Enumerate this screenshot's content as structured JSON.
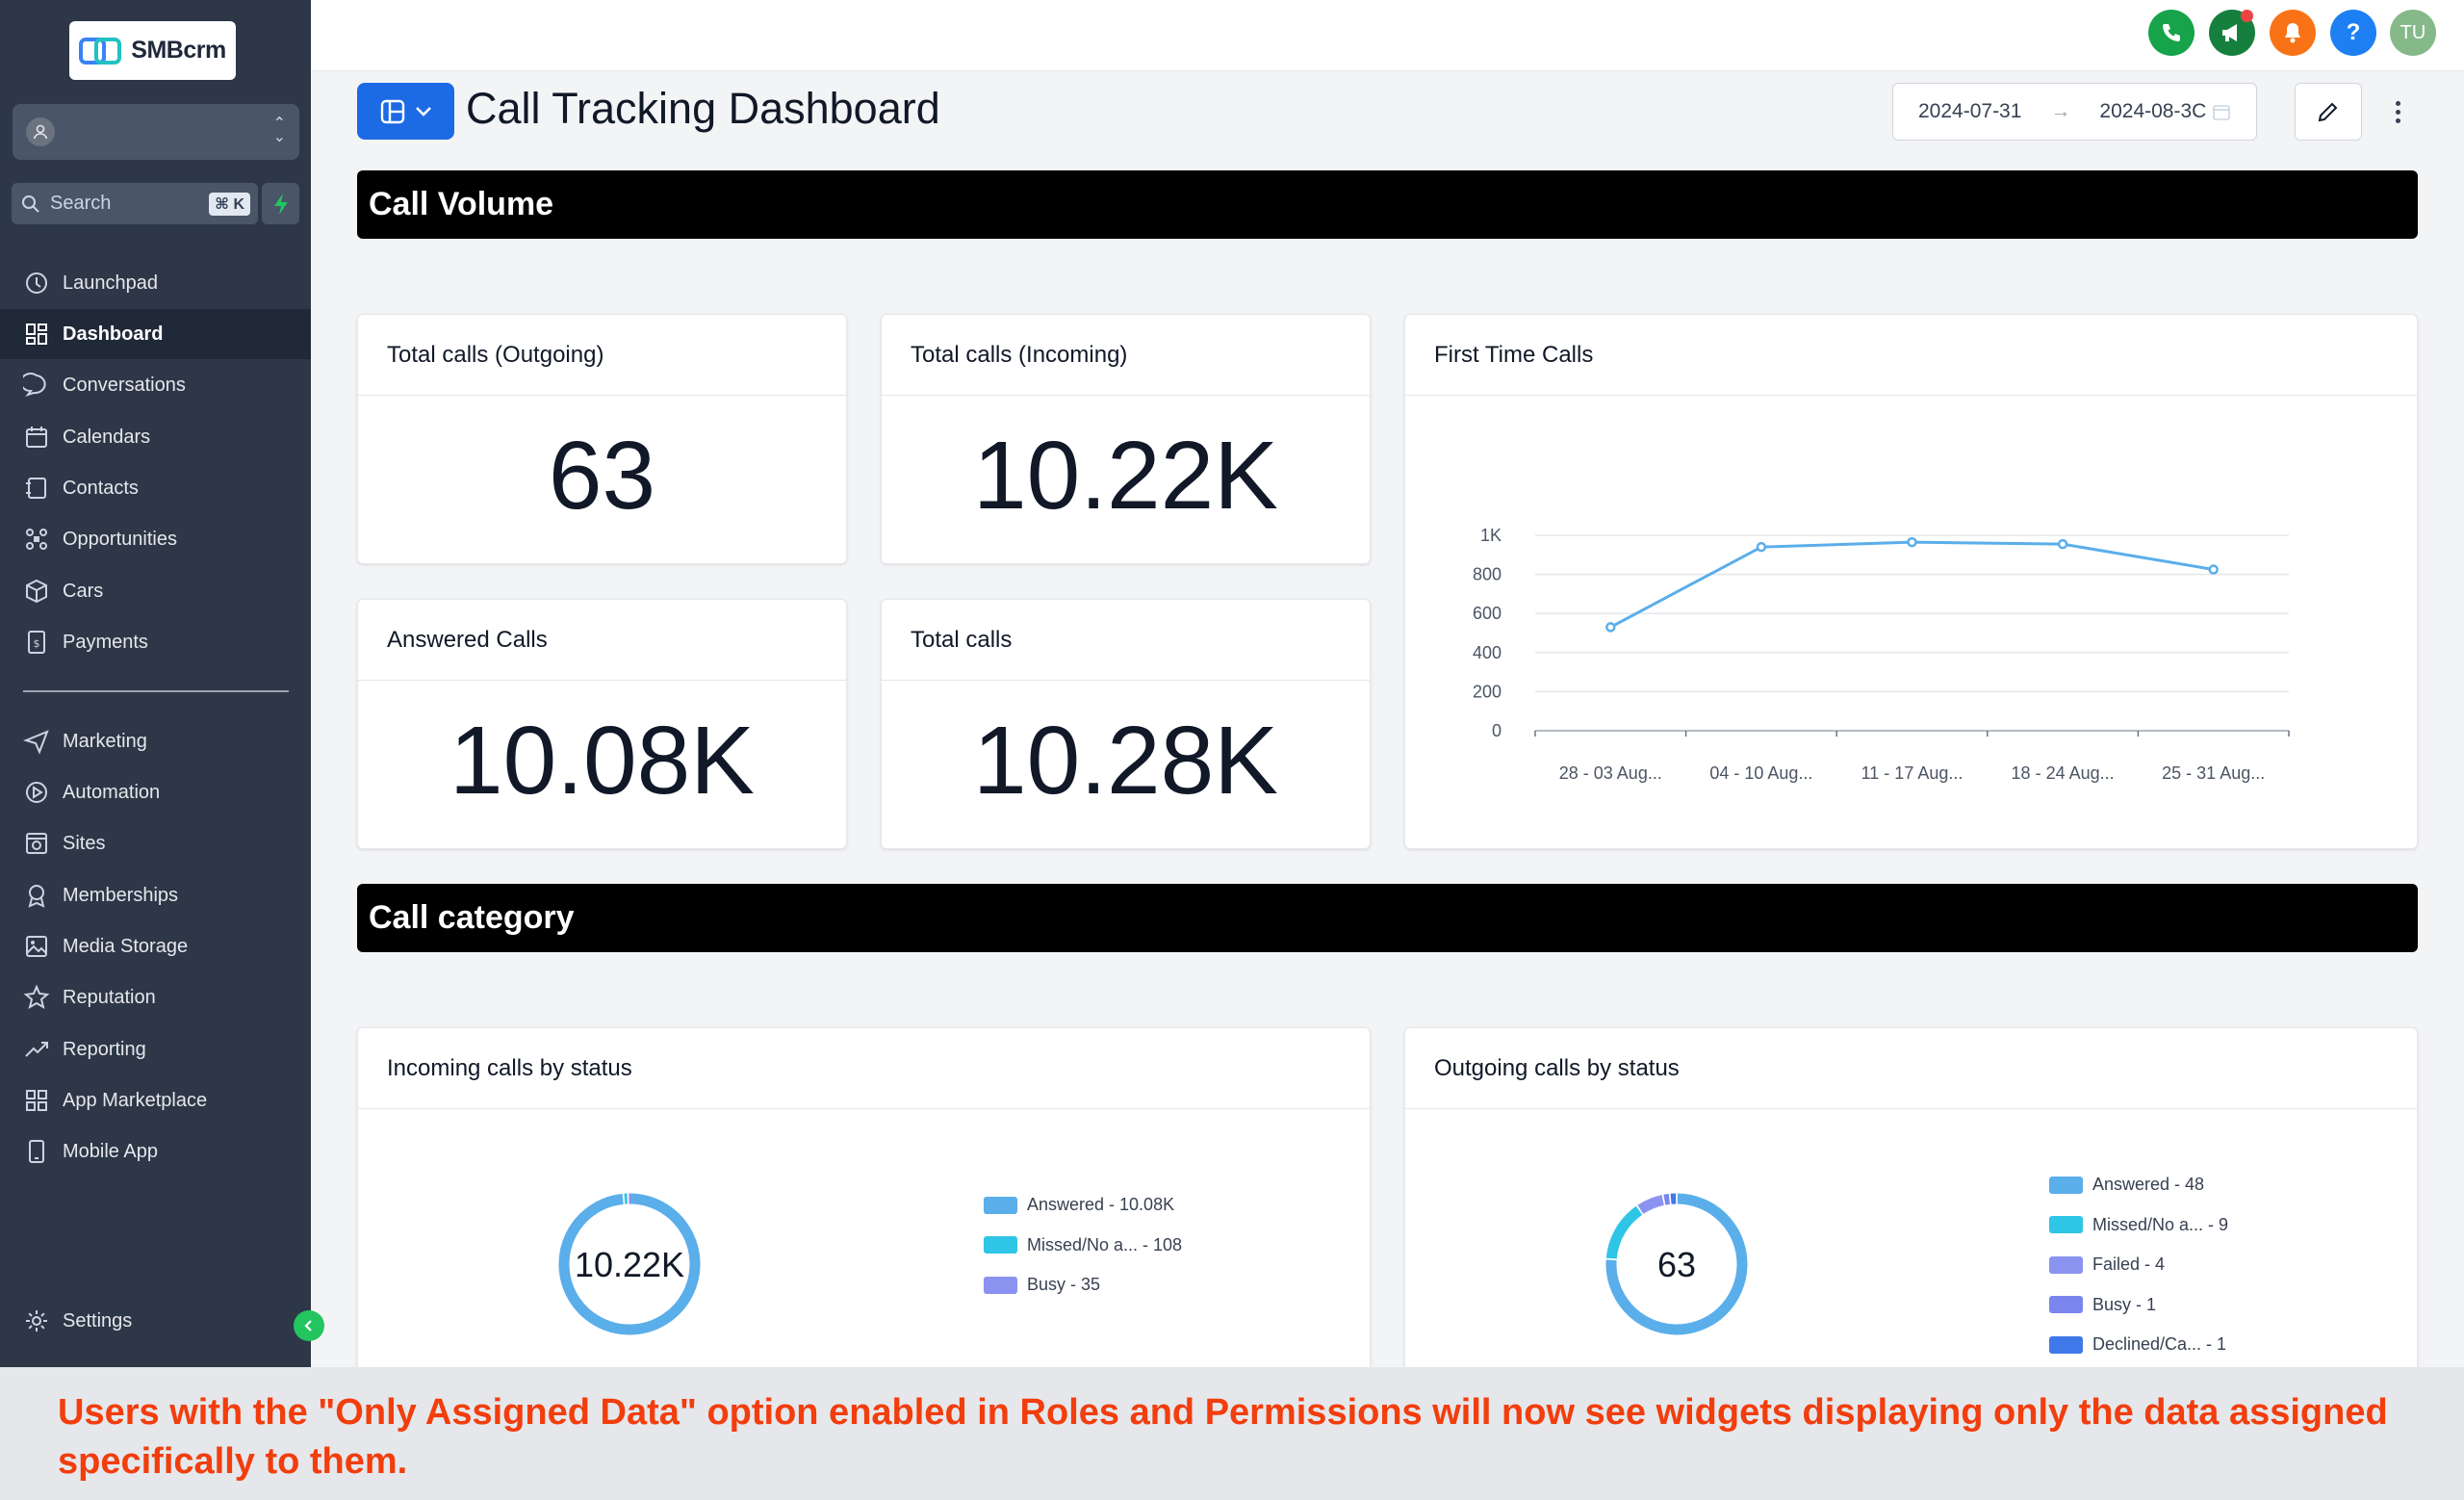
{
  "app": {
    "logo_text": "SMBcrm"
  },
  "search": {
    "placeholder": "Search",
    "shortcut": "⌘ K"
  },
  "sidebar": {
    "items": [
      {
        "label": "Launchpad",
        "icon": "launchpad-icon",
        "active": false
      },
      {
        "label": "Dashboard",
        "icon": "dashboard-icon",
        "active": true
      },
      {
        "label": "Conversations",
        "icon": "chat-icon",
        "active": false
      },
      {
        "label": "Calendars",
        "icon": "calendar-icon",
        "active": false
      },
      {
        "label": "Contacts",
        "icon": "contacts-icon",
        "active": false
      },
      {
        "label": "Opportunities",
        "icon": "opportunities-icon",
        "active": false
      },
      {
        "label": "Cars",
        "icon": "box-icon",
        "active": false
      },
      {
        "label": "Payments",
        "icon": "payments-icon",
        "active": false
      },
      {
        "label": "Marketing",
        "icon": "send-icon",
        "active": false
      },
      {
        "label": "Automation",
        "icon": "automation-icon",
        "active": false
      },
      {
        "label": "Sites",
        "icon": "sites-icon",
        "active": false
      },
      {
        "label": "Memberships",
        "icon": "membership-icon",
        "active": false
      },
      {
        "label": "Media Storage",
        "icon": "image-icon",
        "active": false
      },
      {
        "label": "Reputation",
        "icon": "star-icon",
        "active": false
      },
      {
        "label": "Reporting",
        "icon": "trending-icon",
        "active": false
      },
      {
        "label": "App Marketplace",
        "icon": "grid-icon",
        "active": false
      },
      {
        "label": "Mobile App",
        "icon": "mobile-icon",
        "active": false
      }
    ],
    "settings_label": "Settings"
  },
  "topbar": {
    "user_initials": "TU",
    "help_label": "?",
    "colors": {
      "phone": "#16a34a",
      "announce": "#15803d",
      "bell": "#f97316",
      "help": "#1d7ff2",
      "avatar": "#86b98a"
    }
  },
  "header": {
    "title": "Call Tracking Dashboard",
    "date_start": "2024-07-31",
    "date_end": "2024-08-3C"
  },
  "sections": {
    "volume": "Call Volume",
    "category": "Call category"
  },
  "stats": {
    "outgoing": {
      "title": "Total calls (Outgoing)",
      "value": "63"
    },
    "incoming": {
      "title": "Total calls (Incoming)",
      "value": "10.22K"
    },
    "answered": {
      "title": "Answered Calls",
      "value": "10.08K"
    },
    "total": {
      "title": "Total calls",
      "value": "10.28K"
    }
  },
  "first_time": {
    "title": "First Time Calls"
  },
  "incoming_status": {
    "title": "Incoming calls by status",
    "center": "10.22K"
  },
  "outgoing_status": {
    "title": "Outgoing calls by status",
    "center": "63"
  },
  "chart_data": [
    {
      "type": "line",
      "title": "First Time Calls",
      "categories": [
        "28 - 03 Aug...",
        "04 - 10 Aug...",
        "11 - 17 Aug...",
        "18 - 24 Aug...",
        "25 - 31 Aug..."
      ],
      "values": [
        530,
        940,
        965,
        955,
        825
      ],
      "ylim": [
        0,
        1000
      ],
      "yticks": [
        "0",
        "200",
        "400",
        "600",
        "800",
        "1K"
      ],
      "grid": true,
      "color": "#5aaeea"
    },
    {
      "type": "pie",
      "title": "Incoming calls by status",
      "center_label": "10.22K",
      "slices": [
        {
          "label": "Answered - 10.08K",
          "value": 10080,
          "color": "#5aaeea"
        },
        {
          "label": "Missed/No a... - 108",
          "value": 108,
          "color": "#2fc5e6"
        },
        {
          "label": "Busy - 35",
          "value": 35,
          "color": "#8b93f1"
        }
      ]
    },
    {
      "type": "pie",
      "title": "Outgoing calls by status",
      "center_label": "63",
      "slices": [
        {
          "label": "Answered - 48",
          "value": 48,
          "color": "#5aaeea"
        },
        {
          "label": "Missed/No a... - 9",
          "value": 9,
          "color": "#2fc5e6"
        },
        {
          "label": "Failed - 4",
          "value": 4,
          "color": "#8b93f1"
        },
        {
          "label": "Busy - 1",
          "value": 1,
          "color": "#7a85ee"
        },
        {
          "label": "Declined/Ca... - 1",
          "value": 1,
          "color": "#3f78e8"
        }
      ]
    }
  ],
  "banner": {
    "text": "Users with the \"Only Assigned Data\" option enabled in Roles and Permissions will now see widgets displaying only the data assigned specifically to them."
  }
}
